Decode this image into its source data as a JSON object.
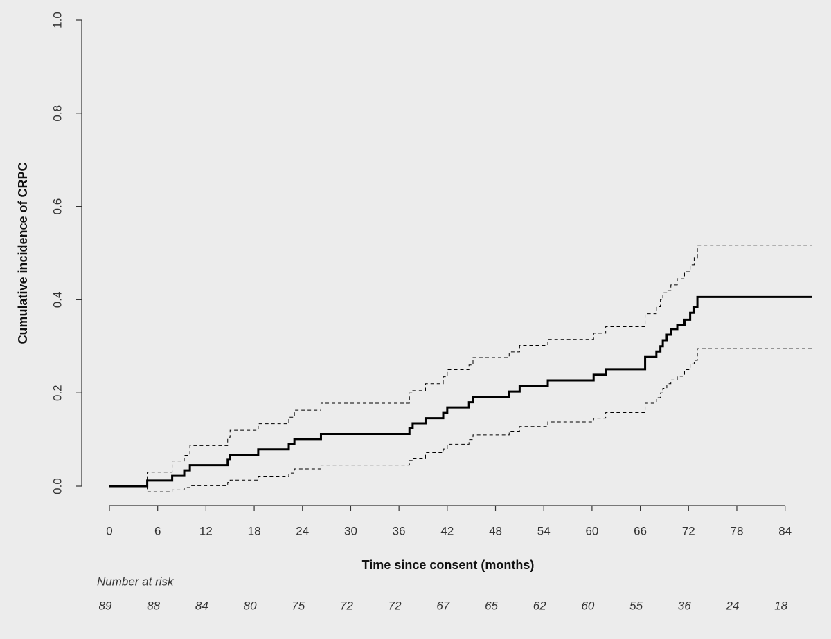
{
  "chart_data": {
    "type": "step",
    "x_label": "Time since consent (months)",
    "y_label": "Cumulative incidence of CRPC",
    "x": [
      0,
      4.7,
      7.8,
      9.3,
      10,
      14.7,
      15,
      18.5,
      22.3,
      23,
      26.3,
      37.3,
      37.7,
      39.3,
      41.5,
      42,
      44.7,
      45.2,
      49.7,
      51,
      54.5,
      60.2,
      61.7,
      66.6,
      68,
      68.5,
      68.8,
      69.3,
      69.8,
      70.6,
      71.5,
      72.2,
      72.7,
      73.1,
      87.3
    ],
    "series": [
      {
        "color": "#000000",
        "dash": false,
        "width": 3,
        "values": [
          0,
          0.012,
          0.022,
          0.034,
          0.045,
          0.058,
          0.067,
          0.079,
          0.09,
          0.101,
          0.112,
          0.124,
          0.135,
          0.146,
          0.157,
          0.169,
          0.18,
          0.191,
          0.203,
          0.215,
          0.227,
          0.239,
          0.251,
          0.277,
          0.289,
          0.3,
          0.313,
          0.325,
          0.337,
          0.345,
          0.357,
          0.372,
          0.384,
          0.406,
          0.406
        ]
      },
      {
        "color": "#000000",
        "dash": true,
        "width": 1,
        "values": [
          0,
          0.03,
          0.054,
          0.066,
          0.087,
          0.105,
          0.12,
          0.134,
          0.148,
          0.163,
          0.178,
          0.2,
          0.205,
          0.22,
          0.235,
          0.25,
          0.26,
          0.276,
          0.288,
          0.302,
          0.315,
          0.328,
          0.342,
          0.37,
          0.385,
          0.4,
          0.415,
          0.42,
          0.432,
          0.445,
          0.46,
          0.475,
          0.49,
          0.516,
          0.516
        ]
      },
      {
        "color": "#000000",
        "dash": true,
        "width": 1,
        "values": [
          0,
          -0.012,
          -0.008,
          -0.003,
          0.001,
          0.008,
          0.013,
          0.02,
          0.028,
          0.037,
          0.045,
          0.055,
          0.06,
          0.072,
          0.08,
          0.09,
          0.1,
          0.11,
          0.118,
          0.128,
          0.138,
          0.146,
          0.158,
          0.178,
          0.19,
          0.2,
          0.21,
          0.22,
          0.228,
          0.236,
          0.25,
          0.262,
          0.27,
          0.295,
          0.295
        ]
      }
    ],
    "xlim": [
      0,
      87.3
    ],
    "xticks": [
      0,
      6,
      12,
      18,
      24,
      30,
      36,
      42,
      48,
      54,
      60,
      66,
      72,
      78,
      84
    ],
    "ylim": [
      0,
      1
    ],
    "yticks": [
      {
        "value": 0,
        "label": "0.0"
      },
      0.2,
      0.4,
      0.6,
      0.8,
      {
        "value": 1,
        "label": "1.0"
      }
    ],
    "grid": false,
    "risk_table": {
      "label": "Number at risk",
      "values": [
        89,
        88,
        84,
        80,
        75,
        72,
        72,
        67,
        65,
        62,
        60,
        55,
        36,
        24,
        18
      ]
    }
  }
}
